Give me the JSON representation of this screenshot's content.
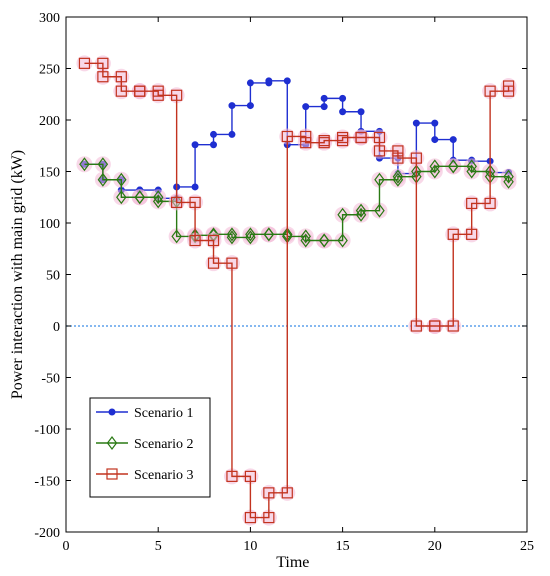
{
  "chart_data": {
    "type": "line",
    "xlabel": "Time",
    "ylabel": "Power interaction with main grid (kW)",
    "xlim": [
      0,
      25
    ],
    "ylim": [
      -200,
      300
    ],
    "xticks": [
      0,
      5,
      10,
      15,
      20,
      25
    ],
    "yticks": [
      -200,
      -150,
      -100,
      -50,
      0,
      50,
      100,
      150,
      200,
      250,
      300
    ],
    "step": "post",
    "legend": "bottom-left",
    "reference_line": {
      "y": 0,
      "color": "#3c8ee6",
      "style": "dotted"
    },
    "series": [
      {
        "name": "Scenario 1",
        "color": "#1f2fd1",
        "marker": "dot",
        "x": [
          1,
          2,
          3,
          4,
          5,
          6,
          7,
          8,
          9,
          10,
          11,
          12,
          13,
          14,
          15,
          16,
          17,
          18,
          19,
          20,
          21,
          22,
          23,
          24
        ],
        "y": [
          157,
          142,
          132,
          132,
          124,
          135,
          176,
          186,
          214,
          236,
          238,
          176,
          213,
          221,
          208,
          189,
          163,
          148,
          197,
          181,
          161,
          160,
          149,
          149
        ]
      },
      {
        "name": "Scenario 2",
        "color": "#2a7a14",
        "marker": "diamond",
        "x": [
          1,
          2,
          3,
          4,
          5,
          6,
          7,
          8,
          9,
          10,
          11,
          12,
          13,
          14,
          15,
          16,
          17,
          18,
          19,
          20,
          21,
          22,
          23,
          24
        ],
        "y": [
          157,
          142,
          125,
          125,
          121,
          87,
          88,
          89,
          86,
          89,
          89,
          87,
          83,
          83,
          108,
          112,
          142,
          145,
          150,
          155,
          155,
          150,
          145,
          140
        ]
      },
      {
        "name": "Scenario 3",
        "color": "#c2331f",
        "marker": "square",
        "x": [
          1,
          2,
          3,
          4,
          5,
          6,
          7,
          8,
          9,
          10,
          11,
          12,
          13,
          14,
          15,
          16,
          17,
          18,
          19,
          20,
          21,
          22,
          23,
          24
        ],
        "y": [
          255,
          242,
          228,
          228,
          224,
          120,
          83,
          61,
          -146,
          -186,
          -162,
          184,
          178,
          180,
          183,
          183,
          170,
          163,
          0,
          0,
          89,
          119,
          228,
          233
        ]
      }
    ]
  },
  "colors": {
    "axis": "#000000",
    "background": "#ffffff",
    "marker_halo": "#f2b8d6"
  }
}
